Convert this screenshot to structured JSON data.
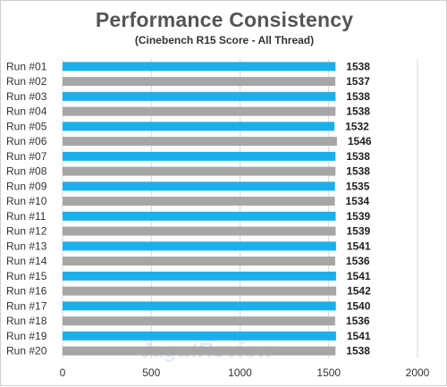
{
  "chart_data": {
    "type": "bar",
    "orientation": "horizontal",
    "title": "Performance Consistency",
    "subtitle": "(Cinebench R15 Score - All Thread)",
    "categories": [
      "Run #01",
      "Run #02",
      "Run #03",
      "Run #04",
      "Run #05",
      "Run #06",
      "Run #07",
      "Run #08",
      "Run #09",
      "Run #10",
      "Run #11",
      "Run #12",
      "Run #13",
      "Run #14",
      "Run #15",
      "Run #16",
      "Run #17",
      "Run #18",
      "Run #19",
      "Run #20"
    ],
    "values": [
      1538,
      1537,
      1538,
      1538,
      1532,
      1546,
      1538,
      1538,
      1535,
      1534,
      1539,
      1539,
      1541,
      1536,
      1541,
      1542,
      1540,
      1536,
      1541,
      1538
    ],
    "bar_colors": [
      "#1ab0ec",
      "#a6a6a6"
    ],
    "xlim": [
      0,
      2000
    ],
    "xticks": [
      0,
      500,
      1000,
      1500,
      2000
    ],
    "grid": "vertical",
    "xlabel": "",
    "ylabel": ""
  },
  "watermark": "JagatReview"
}
